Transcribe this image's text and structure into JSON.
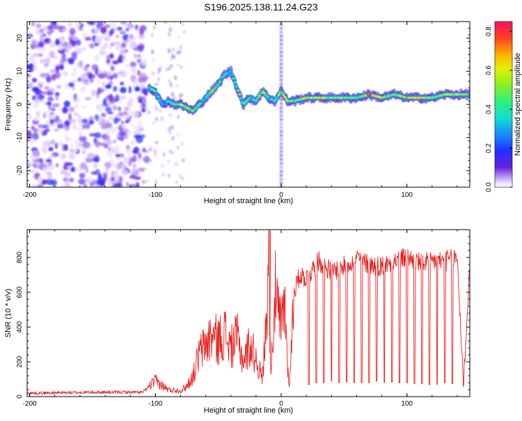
{
  "title": "S196.2025.138.11.24.G23",
  "chart_data": [
    {
      "type": "heatmap",
      "xlabel": "Height of straight line (km)",
      "ylabel": "Frequency (Hz)",
      "xlim": [
        -202,
        150
      ],
      "ylim": [
        -25,
        25
      ],
      "x_ticks": [
        "-200",
        "-100",
        "0",
        "100"
      ],
      "x_tick_values": [
        -200,
        -100,
        0,
        100
      ],
      "y_ticks": [
        "20",
        "10",
        "0",
        "-10",
        "-20"
      ],
      "y_tick_values": [
        20,
        10,
        0,
        -10,
        -20
      ],
      "colorbar": {
        "label": "Normalized spectral amplitude",
        "range": [
          0,
          0.85
        ],
        "ticks": [
          "0.0",
          "0.2",
          "0.4",
          "0.6",
          "0.8"
        ],
        "tick_values": [
          0,
          0.2,
          0.4,
          0.6,
          0.8
        ]
      },
      "ridge": {
        "x": [
          -105,
          -100,
          -95,
          -90,
          -85,
          -80,
          -75,
          -70,
          -65,
          -60,
          -55,
          -50,
          -45,
          -40,
          -35,
          -30,
          -25,
          -20,
          -15,
          -10,
          -5,
          0,
          5,
          10,
          20,
          30,
          40,
          50,
          60,
          70,
          80,
          90,
          100,
          110,
          120,
          130,
          140,
          150
        ],
        "freq": [
          5,
          4,
          0,
          1,
          0,
          0,
          -1,
          -2,
          0,
          2,
          4,
          6,
          9,
          10,
          5,
          0,
          2,
          1,
          4,
          2,
          1,
          4,
          1,
          1,
          2,
          2,
          2,
          2,
          2,
          3,
          2,
          3,
          2,
          2,
          2,
          3,
          3,
          3
        ],
        "amp": [
          0.4,
          0.4,
          0.3,
          0.35,
          0.4,
          0.5,
          0.55,
          0.45,
          0.4,
          0.3,
          0.45,
          0.4,
          0.35,
          0.3,
          0.45,
          0.4,
          0.35,
          0.4,
          0.55,
          0.35,
          0.4,
          0.5,
          0.5,
          0.45,
          0.6,
          0.6,
          0.45,
          0.55,
          0.4,
          0.75,
          0.55,
          0.45,
          0.6,
          0.65,
          0.45,
          0.5,
          0.55,
          0.55
        ]
      }
    },
    {
      "type": "line",
      "xlabel": "Height of straight line (km)",
      "ylabel": "SNR (10 * v/v)",
      "xlim": [
        -202,
        150
      ],
      "ylim": [
        0,
        960
      ],
      "x_ticks": [
        "-200",
        "-100",
        "0",
        "100"
      ],
      "x_tick_values": [
        -200,
        -100,
        0,
        100
      ],
      "y_ticks": [
        "0",
        "200",
        "400",
        "600",
        "800"
      ],
      "y_tick_values": [
        0,
        200,
        400,
        600,
        800
      ],
      "color": "#e8201e",
      "series": [
        {
          "x": [
            -200,
            -150,
            -110,
            -105,
            -100,
            -90,
            -80,
            -75,
            -70,
            -65,
            -60,
            -55,
            -50,
            -45,
            -40,
            -35,
            -30,
            -25,
            -20,
            -15,
            -12,
            -10,
            -8,
            -5,
            -2,
            0,
            3,
            6,
            8,
            10,
            15,
            20,
            30,
            40,
            50,
            60,
            70,
            80,
            90,
            100,
            110,
            120,
            130,
            140,
            145,
            150
          ],
          "y": [
            20,
            25,
            25,
            60,
            90,
            40,
            35,
            60,
            120,
            250,
            300,
            350,
            320,
            370,
            280,
            340,
            200,
            300,
            220,
            100,
            400,
            920,
            150,
            600,
            450,
            400,
            530,
            60,
            250,
            600,
            700,
            680,
            780,
            720,
            750,
            800,
            760,
            750,
            780,
            800,
            770,
            780,
            780,
            800,
            70,
            770
          ],
          "dip_x": [
            22,
            28,
            34,
            40,
            46,
            52,
            58,
            64,
            70,
            76,
            82,
            88,
            94,
            100,
            106,
            112,
            118,
            124,
            130,
            136,
            145
          ],
          "dip_y": [
            70,
            80,
            80,
            90,
            80,
            85,
            80,
            80,
            80,
            90,
            80,
            85,
            80,
            80,
            75,
            75,
            70,
            70,
            80,
            75,
            60
          ]
        }
      ]
    }
  ]
}
